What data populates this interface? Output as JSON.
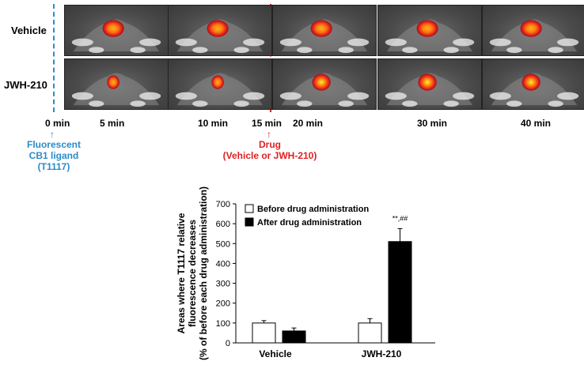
{
  "figure": {
    "row_labels": [
      "Vehicle",
      "JWH-210"
    ],
    "time_labels": [
      "0 min",
      "5 min",
      "10 min",
      "15 min",
      "20 min",
      "30 min",
      "40 min"
    ],
    "ligand_note": [
      "Fluorescent",
      "CB1 ligand",
      "(T1117)"
    ],
    "drug_note": [
      "Drug",
      "(Vehicle or JWH-210)"
    ],
    "colors": {
      "ligand_line": "#2b8bc9",
      "drug_line": "#e02020"
    }
  },
  "chart_data": {
    "type": "bar",
    "title": "",
    "ylabel_lines": [
      "Areas where T1117 relative",
      "fluorescence decreases",
      "(% of before each drug administration)"
    ],
    "xlabel": "",
    "categories": [
      "Vehicle",
      "JWH-210"
    ],
    "series": [
      {
        "name": "Before drug administration",
        "values": [
          100,
          100
        ],
        "errors": [
          12,
          22
        ],
        "fill": "#ffffff"
      },
      {
        "name": "After drug administration",
        "values": [
          60,
          510
        ],
        "errors": [
          15,
          65
        ],
        "fill": "#000000"
      }
    ],
    "ylim": [
      0,
      700
    ],
    "yticks": [
      "0",
      "100",
      "200",
      "300",
      "400",
      "500",
      "600",
      "700"
    ],
    "annotation": "**,##",
    "legend_position": "top-left"
  }
}
